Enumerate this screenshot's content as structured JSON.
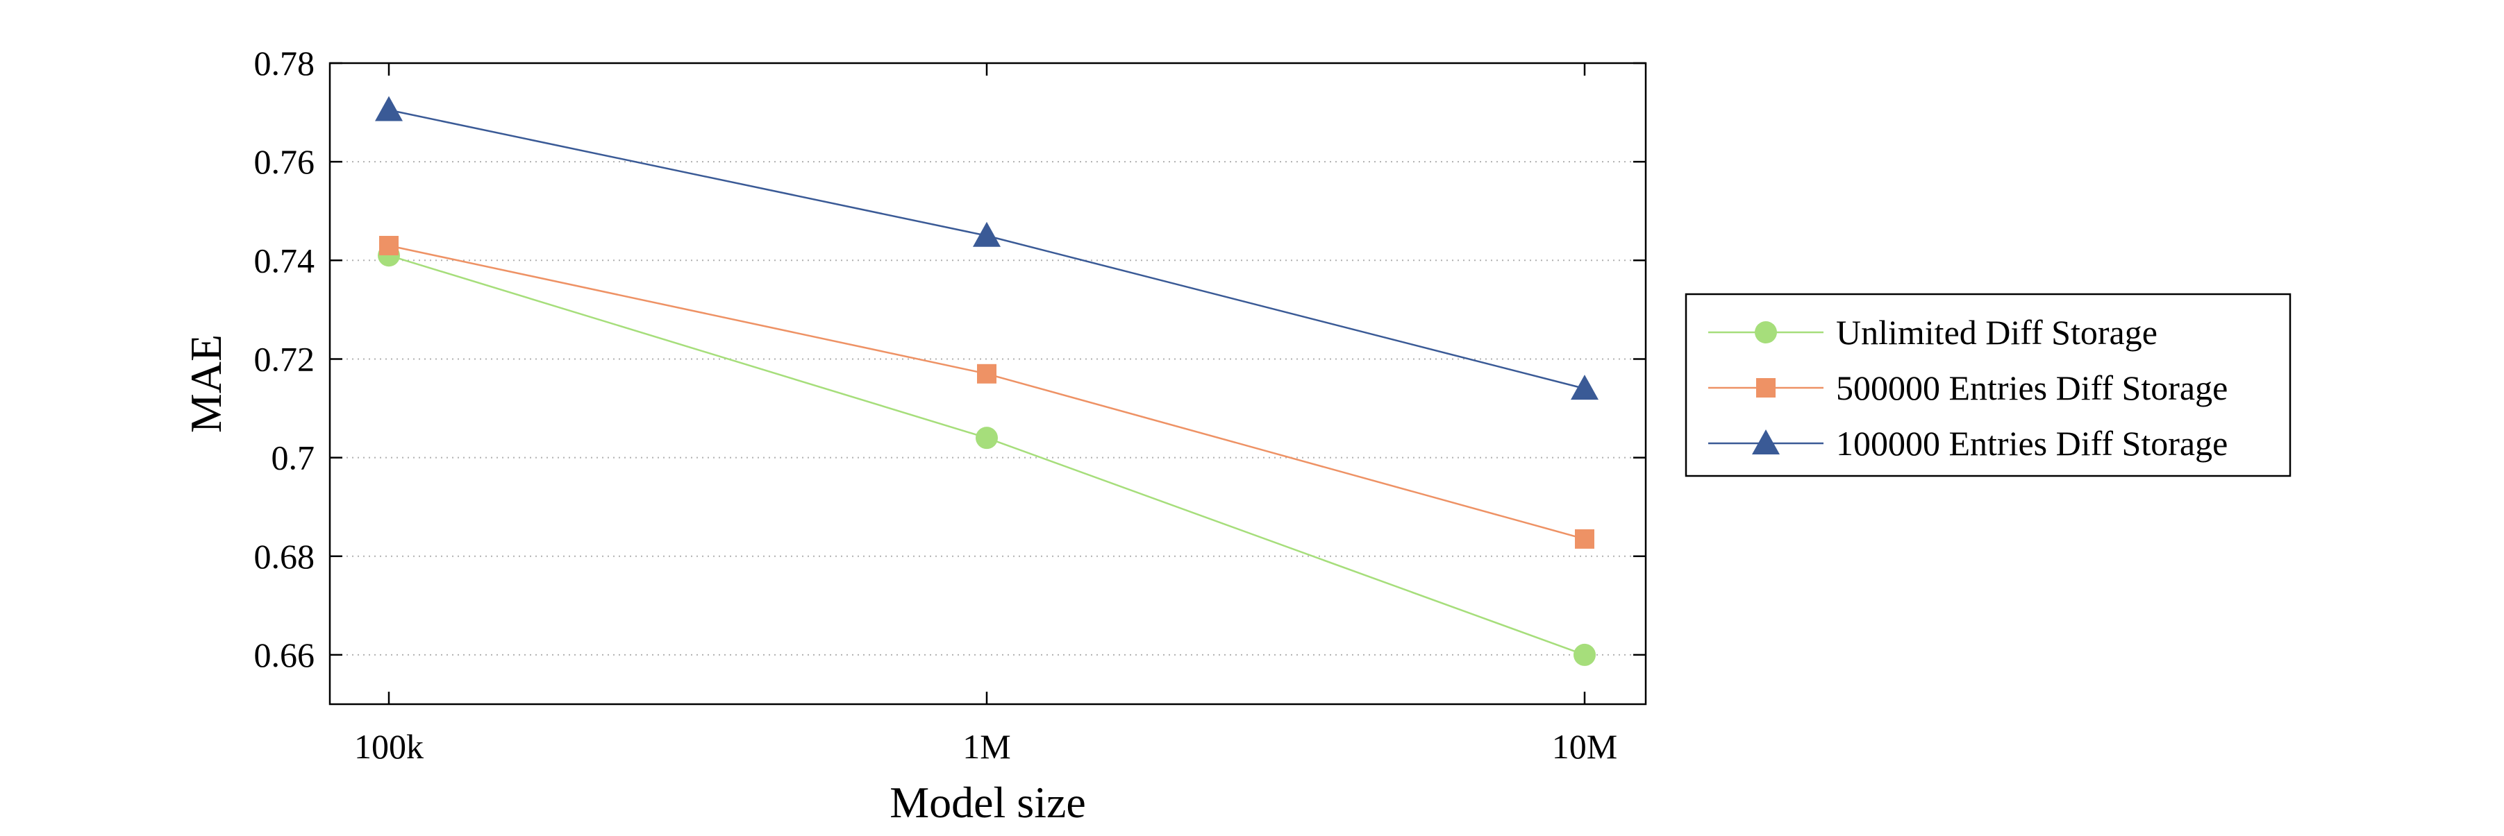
{
  "chart_data": {
    "type": "line",
    "title": "",
    "xlabel": "Model size",
    "ylabel": "MAE",
    "x_scale": "log",
    "x_ticks": [
      "100k",
      "1M",
      "10M"
    ],
    "x_values": [
      100000,
      1000000,
      10000000
    ],
    "y_ticks": [
      "0.66",
      "0.68",
      "0.7",
      "0.72",
      "0.74",
      "0.76",
      "0.78"
    ],
    "ylim": [
      0.65,
      0.78
    ],
    "grid": {
      "x": false,
      "y": true,
      "style": "dotted"
    },
    "legend_position": "right",
    "series": [
      {
        "name": "Unlimited Diff Storage",
        "color": "#a6de7b",
        "marker": "circle",
        "values": [
          0.741,
          0.704,
          0.66
        ]
      },
      {
        "name": "500000 Entries Diff Storage",
        "color": "#ee9265",
        "marker": "square",
        "values": [
          0.743,
          0.717,
          0.6835
        ]
      },
      {
        "name": "100000 Entries Diff Storage",
        "color": "#3a5a96",
        "marker": "triangle",
        "values": [
          0.7705,
          0.745,
          0.714
        ]
      }
    ]
  }
}
